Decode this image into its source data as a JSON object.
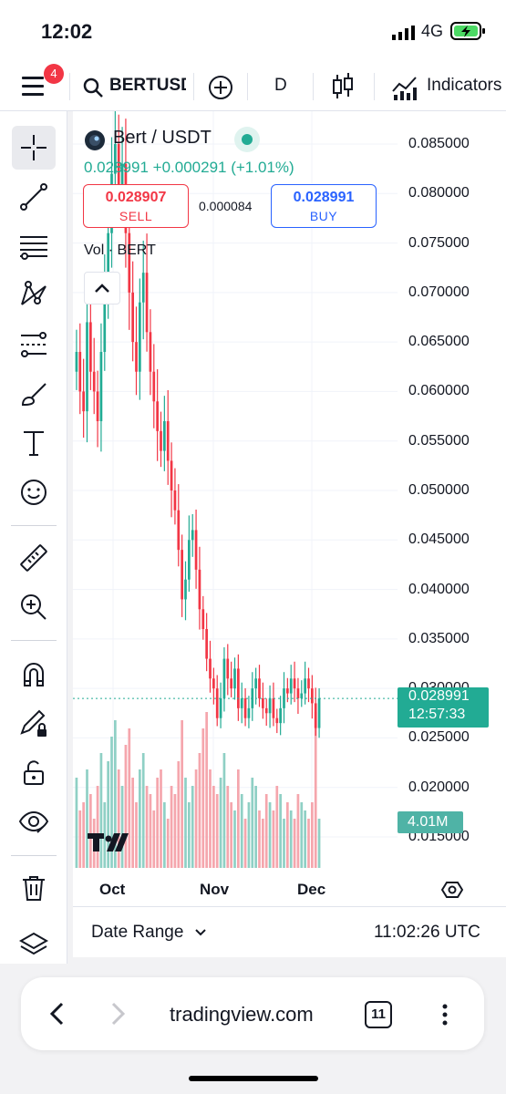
{
  "status_bar": {
    "time": "12:02",
    "network": "4G"
  },
  "toolbar": {
    "menu_badge": "4",
    "symbol": "BERTUSDT",
    "interval": "D",
    "indicators_label": "Indicators"
  },
  "sidebar": {
    "tools": [
      "crosshair-icon",
      "trend-line-icon",
      "fib-lines-icon",
      "pattern-icon",
      "prediction-icon",
      "brush-icon",
      "text-icon",
      "emoji-icon",
      "ruler-icon",
      "zoom-in-icon",
      "magnet-icon",
      "lock-drawings-icon",
      "unlock-icon",
      "eye-icon",
      "trash-icon",
      "layers-icon"
    ]
  },
  "legend": {
    "title": "Bert / USDT",
    "last": "0.028991",
    "change": "+0.000291",
    "change_pct": "(+1.01%)",
    "sell_price": "0.028907",
    "sell_label": "SELL",
    "spread": "0.000084",
    "buy_price": "0.028991",
    "buy_label": "BUY",
    "vol_label": "Vol · BERT"
  },
  "chart_data": {
    "type": "candlestick",
    "y_ticks": [
      "0.085000",
      "0.080000",
      "0.075000",
      "0.070000",
      "0.065000",
      "0.060000",
      "0.055000",
      "0.050000",
      "0.045000",
      "0.040000",
      "0.035000",
      "0.030000",
      "0.025000",
      "0.020000",
      "0.015000"
    ],
    "x_ticks": [
      "Oct",
      "Nov",
      "Dec"
    ],
    "current_price": "0.028991",
    "countdown": "12:57:33",
    "volume_label": "4.01M",
    "colors": {
      "up": "#22ab94",
      "down": "#f23645",
      "up_vol": "#8fd0c5",
      "down_vol": "#f5a6ad"
    },
    "close_series": [
      0.064,
      0.06,
      0.058,
      0.067,
      0.062,
      0.06,
      0.057,
      0.064,
      0.07,
      0.076,
      0.082,
      0.085,
      0.08,
      0.083,
      0.076,
      0.07,
      0.065,
      0.062,
      0.069,
      0.072,
      0.066,
      0.062,
      0.059,
      0.056,
      0.054,
      0.057,
      0.053,
      0.05,
      0.048,
      0.044,
      0.039,
      0.041,
      0.045,
      0.046,
      0.042,
      0.038,
      0.036,
      0.033,
      0.031,
      0.03,
      0.027,
      0.029,
      0.033,
      0.031,
      0.03,
      0.032,
      0.028,
      0.029,
      0.027,
      0.028,
      0.03,
      0.031,
      0.029,
      0.028,
      0.0275,
      0.029,
      0.027,
      0.0265,
      0.028,
      0.03,
      0.0295,
      0.031,
      0.03,
      0.029,
      0.0295,
      0.031,
      0.03,
      0.0285,
      0.026,
      0.029
    ],
    "volume_series": [
      0.55,
      0.35,
      0.4,
      0.6,
      0.45,
      0.3,
      0.5,
      0.7,
      0.4,
      0.65,
      0.8,
      0.9,
      0.6,
      0.5,
      0.75,
      0.85,
      0.55,
      0.4,
      0.6,
      0.7,
      0.5,
      0.45,
      0.35,
      0.55,
      0.6,
      0.4,
      0.3,
      0.5,
      0.45,
      0.65,
      0.9,
      0.55,
      0.4,
      0.5,
      0.6,
      0.7,
      0.85,
      0.95,
      0.6,
      0.5,
      0.45,
      0.55,
      0.7,
      0.5,
      0.4,
      0.35,
      0.6,
      0.45,
      0.3,
      0.4,
      0.55,
      0.5,
      0.35,
      0.3,
      0.45,
      0.4,
      0.35,
      0.5,
      0.45,
      0.3,
      0.4,
      0.35,
      0.3,
      0.45,
      0.4,
      0.35,
      0.3,
      0.4,
      0.95,
      0.3
    ]
  },
  "footer": {
    "date_range": "Date Range",
    "clock": "11:02:26 UTC"
  },
  "browser": {
    "url": "tradingview.com",
    "tabs": "11"
  }
}
